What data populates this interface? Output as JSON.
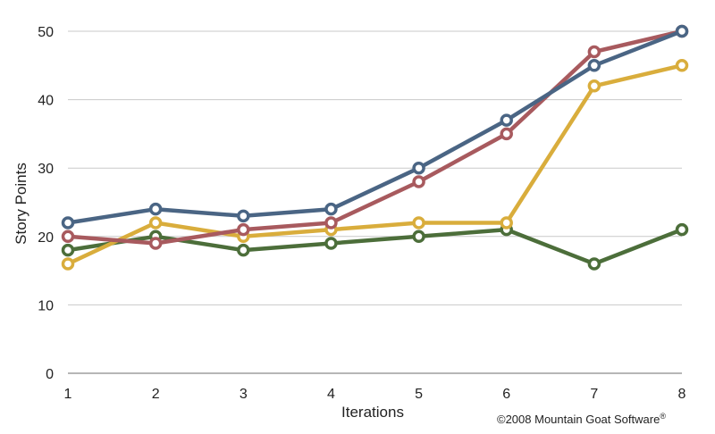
{
  "chart_data": {
    "type": "line",
    "title": "",
    "xlabel": "Iterations",
    "ylabel": "Story Points",
    "x": [
      1,
      2,
      3,
      4,
      5,
      6,
      7,
      8
    ],
    "xlim": [
      1,
      8
    ],
    "ylim": [
      0,
      50
    ],
    "yticks": [
      0,
      10,
      20,
      30,
      40,
      50
    ],
    "xticks": [
      1,
      2,
      3,
      4,
      5,
      6,
      7,
      8
    ],
    "grid": "horizontal",
    "legend": "none",
    "series": [
      {
        "color": "#4a6584",
        "values": [
          22,
          24,
          23,
          24,
          30,
          37,
          45,
          50
        ]
      },
      {
        "color": "#a85a5e",
        "values": [
          20,
          19,
          21,
          22,
          28,
          35,
          47,
          50
        ]
      },
      {
        "color": "#d9ad3c",
        "values": [
          16,
          22,
          20,
          21,
          22,
          22,
          42,
          45
        ]
      },
      {
        "color": "#4c6e3a",
        "values": [
          18,
          20,
          18,
          19,
          20,
          21,
          16,
          21
        ]
      }
    ]
  },
  "footer": {
    "copyright": "©2008 Mountain Goat Software",
    "registered": "®"
  }
}
